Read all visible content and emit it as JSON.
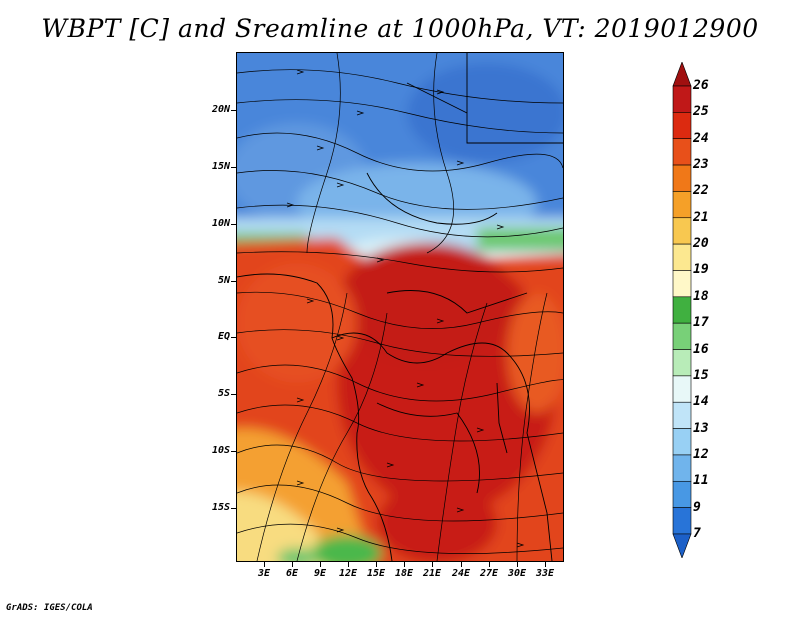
{
  "title": "WBPT [C] and Sreamline at 1000hPa, VT: 2019012900",
  "footer": "GrADS: IGES/COLA",
  "map": {
    "lat_labels": [
      "20N",
      "15N",
      "10N",
      "5N",
      "EQ",
      "5S",
      "10S",
      "15S"
    ],
    "lon_labels": [
      "3E",
      "6E",
      "9E",
      "12E",
      "15E",
      "18E",
      "21E",
      "24E",
      "27E",
      "30E",
      "33E"
    ],
    "lon_range": [
      0,
      35
    ],
    "lat_range": [
      -20,
      25
    ]
  },
  "colorbar": {
    "labels": [
      "26",
      "25",
      "24",
      "23",
      "22",
      "21",
      "20",
      "19",
      "18",
      "17",
      "16",
      "15",
      "14",
      "13",
      "12",
      "11",
      "9",
      "7"
    ],
    "colors": [
      "#a01010",
      "#c01818",
      "#dc2a10",
      "#e8501a",
      "#f07818",
      "#f5a028",
      "#f8c850",
      "#fce890",
      "#fff8c8",
      "#40b040",
      "#78d078",
      "#b8ecb8",
      "#e8f8f8",
      "#c0e4f8",
      "#98d0f4",
      "#70b4ec",
      "#4898e4",
      "#2874d8",
      "#1c60c8"
    ]
  },
  "colors": {
    "north_blue": "#4a86da",
    "light_blue": "#9cccf0",
    "green": "#6cc86c",
    "red_core": "#c81e14",
    "orange_red": "#e2441a",
    "yellow": "#f8dc80"
  }
}
